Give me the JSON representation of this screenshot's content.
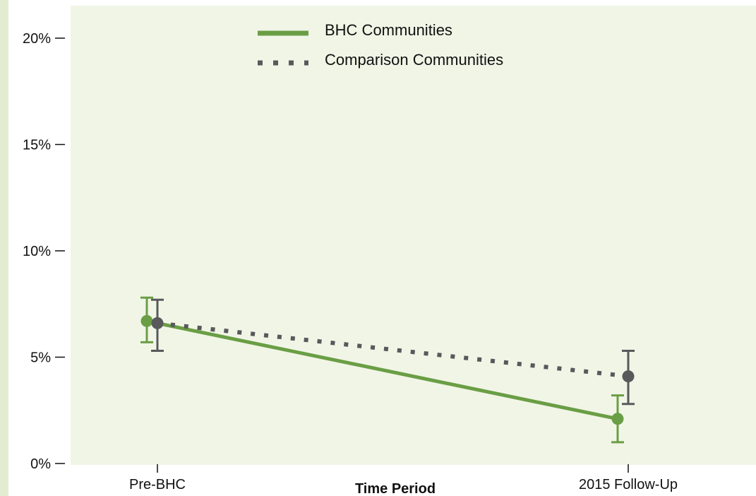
{
  "chart_data": {
    "type": "line",
    "categories": [
      "Pre-BHC",
      "2015 Follow-Up"
    ],
    "xlabel": "Time Period",
    "ylabel": "",
    "ylim": [
      0,
      20
    ],
    "y_ticks": [
      0,
      5,
      10,
      15,
      20
    ],
    "y_tick_labels": [
      "0%",
      "5%",
      "10%",
      "15%",
      "20%"
    ],
    "legend_position": "top-center",
    "grid": false,
    "background_color": "#f1f5e6",
    "series": [
      {
        "name": "BHC Communities",
        "style": "solid",
        "color": "#6a9e45",
        "values": [
          6.7,
          2.1
        ],
        "error_low": [
          5.7,
          1.0
        ],
        "error_high": [
          7.8,
          3.2
        ]
      },
      {
        "name": "Comparison Communities",
        "style": "dotted",
        "color": "#58595b",
        "values": [
          6.6,
          4.1
        ],
        "error_low": [
          5.3,
          2.8
        ],
        "error_high": [
          7.7,
          5.3
        ]
      }
    ]
  }
}
